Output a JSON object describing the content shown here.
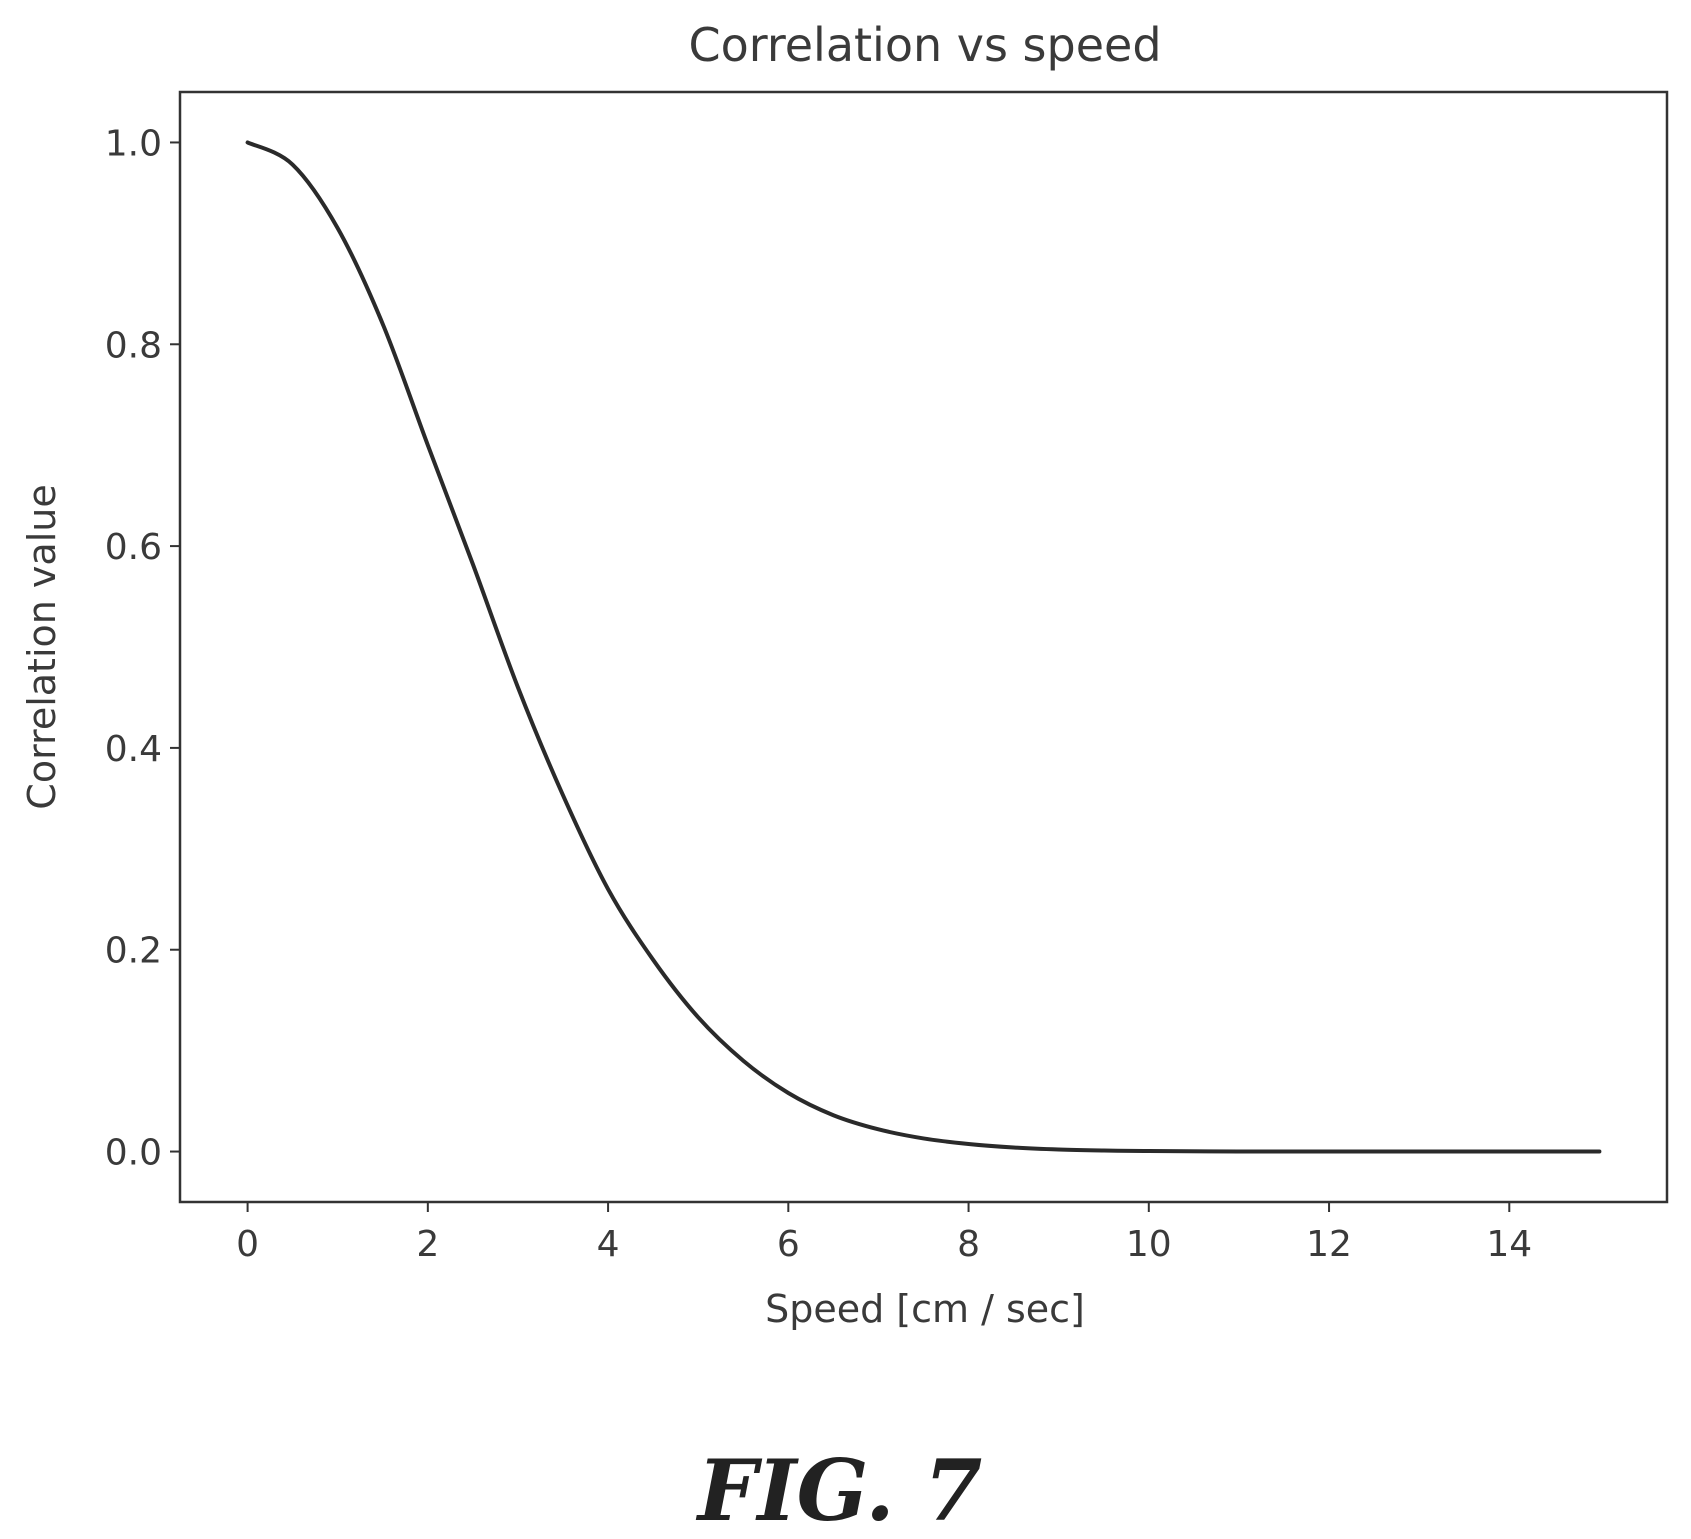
{
  "chart_data": {
    "type": "line",
    "title": "Correlation vs speed",
    "xlabel": "Speed [cm / sec]",
    "ylabel": "Correlation value",
    "xlim": [
      -0.75,
      15.75
    ],
    "ylim": [
      -0.05,
      1.05
    ],
    "xticks": [
      0,
      2,
      4,
      6,
      8,
      10,
      12,
      14
    ],
    "xtick_labels": [
      "0",
      "2",
      "4",
      "6",
      "8",
      "10",
      "12",
      "14"
    ],
    "yticks": [
      0.0,
      0.2,
      0.4,
      0.6,
      0.8,
      1.0
    ],
    "ytick_labels": [
      "0.0",
      "0.2",
      "0.4",
      "0.6",
      "0.8",
      "1.0"
    ],
    "grid": false,
    "legend": "none",
    "series": [
      {
        "color": "#2a2a2a",
        "x": [
          0,
          0.5,
          1,
          1.5,
          2,
          2.5,
          3,
          3.5,
          4,
          4.5,
          5,
          5.5,
          6,
          6.5,
          7,
          7.5,
          8,
          8.5,
          9,
          9.5,
          10,
          11,
          12,
          13,
          14,
          15
        ],
        "y": [
          1.0,
          0.978,
          0.915,
          0.82,
          0.7,
          0.582,
          0.46,
          0.353,
          0.26,
          0.19,
          0.133,
          0.09,
          0.058,
          0.036,
          0.022,
          0.013,
          0.0075,
          0.004,
          0.002,
          0.001,
          0.0005,
          0.0001,
          0.0,
          0.0,
          0.0,
          0.0
        ]
      }
    ]
  },
  "figure": {
    "caption": "FIG. 7"
  }
}
